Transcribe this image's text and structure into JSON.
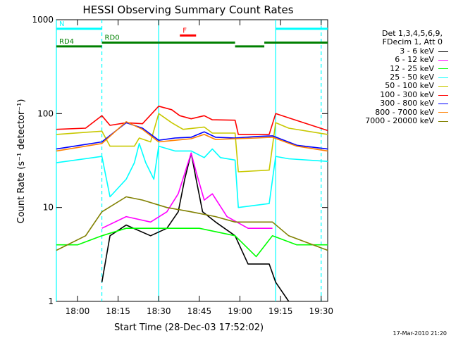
{
  "chart_data": {
    "type": "line",
    "title": "HESSI Observing Summary Count Rates",
    "xlabel": "Start Time (28-Dec-03 17:52:02)",
    "ylabel": "Count Rate (s⁻¹ detector⁻¹)",
    "x_unit": "minutes",
    "xlim": [
      17.87,
      19.54
    ],
    "x_ticks": [
      {
        "value": 18.0,
        "label": "18:00"
      },
      {
        "value": 18.25,
        "label": "18:15"
      },
      {
        "value": 18.5,
        "label": "18:30"
      },
      {
        "value": 18.75,
        "label": "18:45"
      },
      {
        "value": 19.0,
        "label": "19:00"
      },
      {
        "value": 19.25,
        "label": "19:15"
      },
      {
        "value": 19.5,
        "label": "19:30"
      }
    ],
    "y_scale": "log",
    "ylim": [
      1,
      1000
    ],
    "y_ticks": [
      {
        "value": 1,
        "label": "1"
      },
      {
        "value": 10,
        "label": "10"
      },
      {
        "value": 100,
        "label": "100"
      },
      {
        "value": 1000,
        "label": "1000"
      }
    ],
    "legend_header": [
      "Det 1,3,4,5,6,9,",
      "FDecim 1, Att 0"
    ],
    "series": [
      {
        "name": "3 - 6 keV",
        "color": "#000000",
        "points": [
          [
            18.15,
            1.6
          ],
          [
            18.2,
            5
          ],
          [
            18.3,
            6.5
          ],
          [
            18.45,
            5
          ],
          [
            18.55,
            6
          ],
          [
            18.62,
            9
          ],
          [
            18.66,
            20
          ],
          [
            18.7,
            38
          ],
          [
            18.73,
            20
          ],
          [
            18.77,
            9
          ],
          [
            18.85,
            7
          ],
          [
            18.97,
            5
          ],
          [
            19.05,
            2.5
          ],
          [
            19.18,
            2.5
          ],
          [
            19.22,
            1.6
          ],
          [
            19.3,
            1
          ]
        ]
      },
      {
        "name": "6 - 12 keV",
        "color": "#ff00ff",
        "points": [
          [
            18.15,
            6
          ],
          [
            18.3,
            8
          ],
          [
            18.45,
            7
          ],
          [
            18.55,
            9
          ],
          [
            18.62,
            14
          ],
          [
            18.7,
            38
          ],
          [
            18.73,
            24
          ],
          [
            18.78,
            12
          ],
          [
            18.83,
            14
          ],
          [
            18.92,
            8
          ],
          [
            19.05,
            6
          ],
          [
            19.2,
            6
          ]
        ]
      },
      {
        "name": "12 - 25 keV",
        "color": "#00ff00",
        "points": [
          [
            17.87,
            4
          ],
          [
            18.0,
            4
          ],
          [
            18.15,
            5
          ],
          [
            18.3,
            6
          ],
          [
            18.5,
            6
          ],
          [
            18.6,
            6
          ],
          [
            18.75,
            6
          ],
          [
            18.97,
            5
          ],
          [
            19.1,
            3
          ],
          [
            19.2,
            5
          ],
          [
            19.35,
            4
          ],
          [
            19.54,
            4
          ]
        ]
      },
      {
        "name": "25 - 50 keV",
        "color": "#00ffff",
        "points": [
          [
            17.87,
            30
          ],
          [
            18.15,
            35
          ],
          [
            18.2,
            13
          ],
          [
            18.3,
            20
          ],
          [
            18.35,
            30
          ],
          [
            18.38,
            48
          ],
          [
            18.42,
            30
          ],
          [
            18.47,
            20
          ],
          [
            18.5,
            45
          ],
          [
            18.6,
            40
          ],
          [
            18.7,
            40
          ],
          [
            18.78,
            34
          ],
          [
            18.83,
            42
          ],
          [
            18.88,
            34
          ],
          [
            18.97,
            32
          ],
          [
            18.99,
            10
          ],
          [
            19.18,
            11
          ],
          [
            19.22,
            35
          ],
          [
            19.3,
            33
          ],
          [
            19.54,
            31
          ]
        ]
      },
      {
        "name": "50 - 100 keV",
        "color": "#c8c800",
        "points": [
          [
            17.87,
            60
          ],
          [
            18.15,
            65
          ],
          [
            18.2,
            45
          ],
          [
            18.35,
            45
          ],
          [
            18.38,
            55
          ],
          [
            18.45,
            50
          ],
          [
            18.5,
            100
          ],
          [
            18.58,
            80
          ],
          [
            18.65,
            68
          ],
          [
            18.78,
            72
          ],
          [
            18.83,
            62
          ],
          [
            18.97,
            62
          ],
          [
            18.99,
            24
          ],
          [
            19.18,
            25
          ],
          [
            19.22,
            80
          ],
          [
            19.3,
            70
          ],
          [
            19.54,
            60
          ]
        ]
      },
      {
        "name": "100 - 300 keV",
        "color": "#ff0000",
        "points": [
          [
            17.87,
            68
          ],
          [
            18.05,
            70
          ],
          [
            18.15,
            95
          ],
          [
            18.2,
            75
          ],
          [
            18.3,
            80
          ],
          [
            18.4,
            78
          ],
          [
            18.5,
            120
          ],
          [
            18.58,
            110
          ],
          [
            18.63,
            95
          ],
          [
            18.7,
            88
          ],
          [
            18.78,
            95
          ],
          [
            18.83,
            86
          ],
          [
            18.97,
            85
          ],
          [
            18.99,
            60
          ],
          [
            19.18,
            60
          ],
          [
            19.22,
            100
          ],
          [
            19.3,
            90
          ],
          [
            19.54,
            66
          ]
        ]
      },
      {
        "name": "300 - 800 keV",
        "color": "#0000ff",
        "points": [
          [
            17.87,
            42
          ],
          [
            18.15,
            50
          ],
          [
            18.3,
            80
          ],
          [
            18.4,
            70
          ],
          [
            18.5,
            52
          ],
          [
            18.6,
            55
          ],
          [
            18.7,
            56
          ],
          [
            18.78,
            64
          ],
          [
            18.85,
            56
          ],
          [
            18.97,
            55
          ],
          [
            19.1,
            57
          ],
          [
            19.2,
            58
          ],
          [
            19.35,
            46
          ],
          [
            19.54,
            42
          ]
        ]
      },
      {
        "name": "800 - 7000 keV",
        "color": "#ff8000",
        "points": [
          [
            17.87,
            40
          ],
          [
            18.15,
            48
          ],
          [
            18.3,
            82
          ],
          [
            18.4,
            68
          ],
          [
            18.5,
            50
          ],
          [
            18.6,
            52
          ],
          [
            18.7,
            54
          ],
          [
            18.78,
            60
          ],
          [
            18.85,
            53
          ],
          [
            18.97,
            54
          ],
          [
            19.1,
            55
          ],
          [
            19.2,
            56
          ],
          [
            19.35,
            45
          ],
          [
            19.54,
            40
          ]
        ]
      },
      {
        "name": "7000 - 20000 keV",
        "color": "#808000",
        "points": [
          [
            17.87,
            3.5
          ],
          [
            18.05,
            5
          ],
          [
            18.15,
            9
          ],
          [
            18.3,
            13
          ],
          [
            18.4,
            12
          ],
          [
            18.55,
            10
          ],
          [
            18.7,
            9
          ],
          [
            18.85,
            8
          ],
          [
            18.97,
            7
          ],
          [
            19.1,
            7
          ],
          [
            19.2,
            7
          ],
          [
            19.3,
            5
          ],
          [
            19.54,
            3.5
          ]
        ]
      }
    ],
    "vlines": [
      {
        "x": 17.87,
        "style": "solid",
        "color": "#00ffff"
      },
      {
        "x": 18.15,
        "style": "dashed",
        "color": "#00ffff"
      },
      {
        "x": 18.5,
        "style": "solid",
        "color": "#00ffff"
      },
      {
        "x": 19.22,
        "style": "solid",
        "color": "#00ffff"
      },
      {
        "x": 19.5,
        "style": "dashed",
        "color": "#00ffff"
      }
    ],
    "bars": [
      {
        "label": "N",
        "color": "#00ffff",
        "y": 800,
        "segments": [
          [
            17.87,
            18.15
          ],
          [
            19.22,
            19.54
          ]
        ]
      },
      {
        "label": "F",
        "color": "#ff0000",
        "y": 680,
        "segments": [
          [
            18.63,
            18.73
          ]
        ]
      },
      {
        "label": "RD0",
        "color": "#008000",
        "y": 570,
        "segments": [
          [
            18.15,
            18.5
          ],
          [
            18.5,
            18.97
          ],
          [
            19.15,
            19.54
          ]
        ]
      },
      {
        "label": "RD4",
        "color": "#008000",
        "y": 520,
        "segments": [
          [
            17.87,
            18.15
          ],
          [
            18.97,
            19.15
          ]
        ]
      }
    ]
  },
  "footer": {
    "timestamp": "17-Mar-2010 21:20"
  }
}
